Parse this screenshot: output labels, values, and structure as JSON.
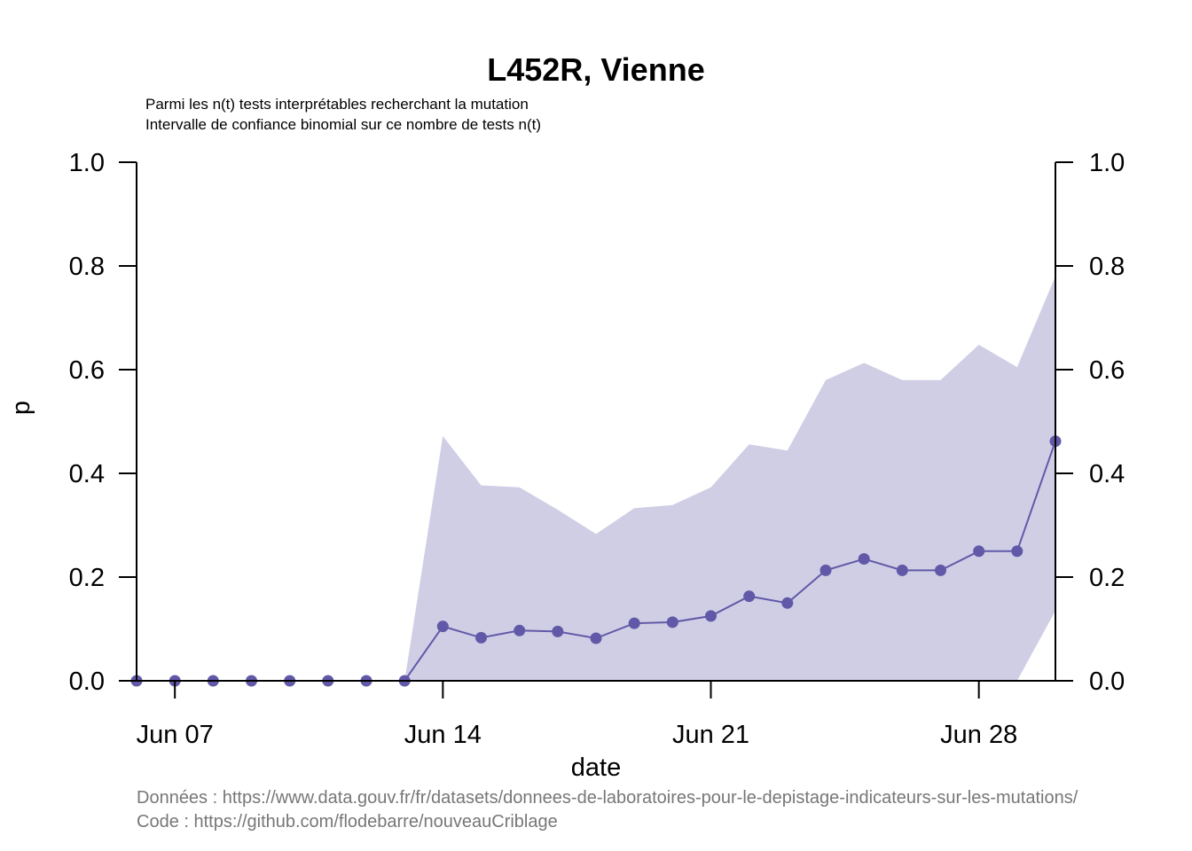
{
  "colors": {
    "line": "#6159a8",
    "band": "#d0cee5",
    "axis": "#000000",
    "credits": "#777777"
  },
  "chart_data": {
    "type": "line",
    "title": "L452R, Vienne",
    "subtitle_lines": [
      "Parmi les n(t) tests interprétables recherchant la mutation",
      "Intervalle de confiance binomial sur ce nombre de tests n(t)"
    ],
    "xlabel": "date",
    "ylabel": "p",
    "ylim": [
      0,
      1
    ],
    "y_ticks": [
      "0.0",
      "0.2",
      "0.4",
      "0.6",
      "0.8",
      "1.0"
    ],
    "x_ticks": [
      {
        "date": "2021-06-07",
        "label": "Jun 07"
      },
      {
        "date": "2021-06-14",
        "label": "Jun 14"
      },
      {
        "date": "2021-06-21",
        "label": "Jun 21"
      },
      {
        "date": "2021-06-28",
        "label": "Jun 28"
      }
    ],
    "xlim": [
      "2021-06-06",
      "2021-06-30"
    ],
    "right_axis": true,
    "grid": false,
    "series": [
      {
        "x": [
          "2021-06-06",
          "2021-06-07",
          "2021-06-08",
          "2021-06-09",
          "2021-06-10",
          "2021-06-11",
          "2021-06-12",
          "2021-06-13",
          "2021-06-14",
          "2021-06-15",
          "2021-06-16",
          "2021-06-17",
          "2021-06-18",
          "2021-06-19",
          "2021-06-20",
          "2021-06-21",
          "2021-06-22",
          "2021-06-23",
          "2021-06-24",
          "2021-06-25",
          "2021-06-26",
          "2021-06-27",
          "2021-06-28",
          "2021-06-29",
          "2021-06-30"
        ],
        "values": [
          0,
          0,
          0,
          0,
          0,
          0,
          0,
          0,
          0.105,
          0.083,
          0.097,
          0.095,
          0.082,
          0.111,
          0.113,
          0.125,
          0.163,
          0.15,
          0.213,
          0.235,
          0.213,
          0.213,
          0.25,
          0.25,
          0.462
        ],
        "ci_upper": [
          0,
          0,
          0,
          0,
          0,
          0,
          0,
          0,
          0.472,
          0.377,
          0.373,
          0.33,
          0.283,
          0.333,
          0.339,
          0.373,
          0.456,
          0.444,
          0.58,
          0.613,
          0.58,
          0.58,
          0.648,
          0.605,
          0.78
        ],
        "ci_lower": [
          0,
          0,
          0,
          0,
          0,
          0,
          0,
          0,
          0,
          0,
          0,
          0,
          0,
          0,
          0,
          0,
          0,
          0,
          0,
          0,
          0,
          0,
          0,
          0,
          0.135
        ]
      }
    ]
  },
  "credits": [
    "Données : https://www.data.gouv.fr/fr/datasets/donnees-de-laboratoires-pour-le-depistage-indicateurs-sur-les-mutations/",
    "Code : https://github.com/flodebarre/nouveauCriblage"
  ]
}
